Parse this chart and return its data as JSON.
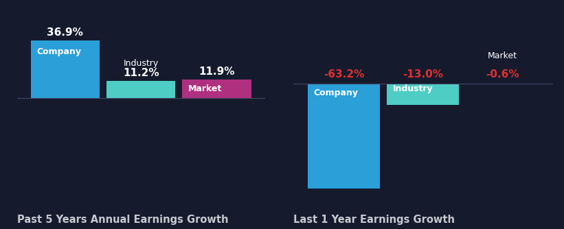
{
  "bg_color": "#151b2d",
  "left_chart": {
    "title": "Past 5 Years Annual Earnings Growth",
    "bars": [
      {
        "label": "Company",
        "value": 36.9,
        "color": "#2b9fd8"
      },
      {
        "label": "Industry",
        "value": 11.2,
        "color": "#4ecdc4"
      },
      {
        "label": "Market",
        "value": 11.9,
        "color": "#b03080"
      }
    ]
  },
  "right_chart": {
    "title": "Last 1 Year Earnings Growth",
    "bars": [
      {
        "label": "Company",
        "value": -63.2,
        "color": "#2b9fd8"
      },
      {
        "label": "Industry",
        "value": -13.0,
        "color": "#4ecdc4"
      },
      {
        "label": "Market",
        "value": -0.6,
        "color": "#b03080"
      }
    ]
  },
  "title_color": "#c8c8d0",
  "value_color_positive": "#ffffff",
  "value_color_negative": "#e03030",
  "label_inside_color": "#ffffff",
  "baseline_color": "#444466",
  "title_fontsize": 10.5,
  "label_fontsize": 9,
  "value_fontsize": 11
}
